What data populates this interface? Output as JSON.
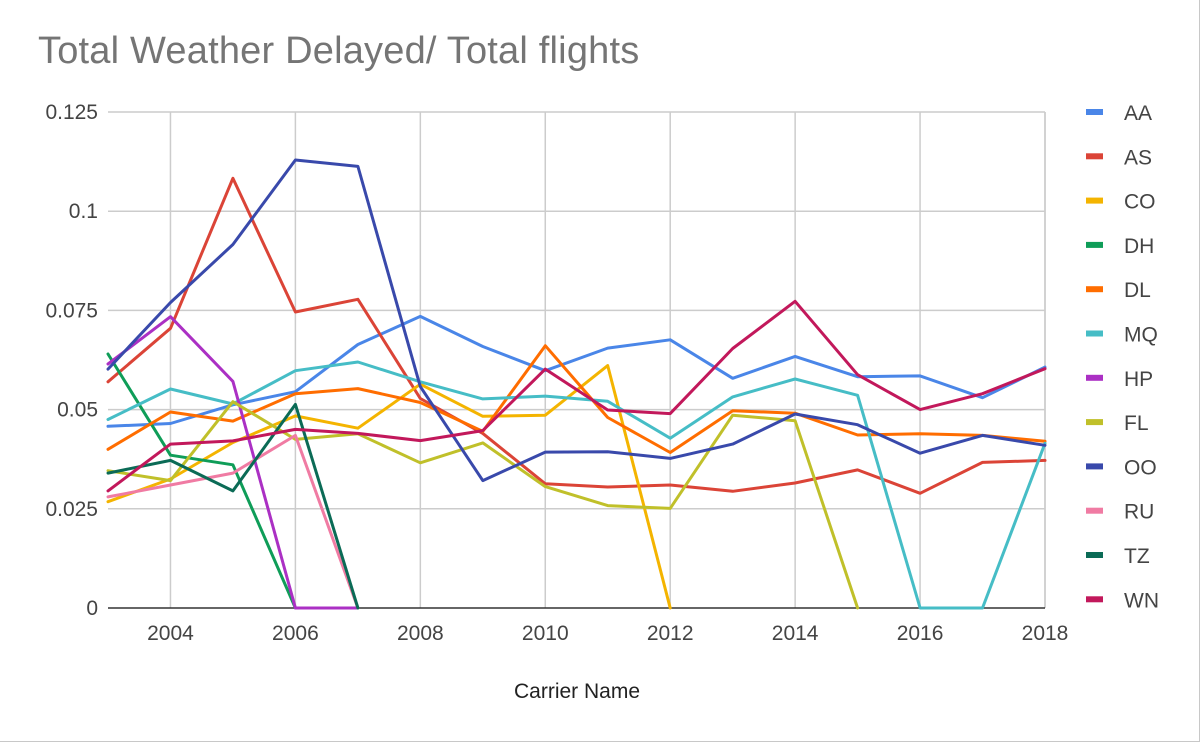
{
  "chart_data": {
    "type": "line",
    "title": "Total Weather Delayed/ Total flights",
    "xlabel": "Carrier Name",
    "ylabel": "",
    "x": [
      2003,
      2004,
      2005,
      2006,
      2007,
      2008,
      2009,
      2010,
      2011,
      2012,
      2013,
      2014,
      2015,
      2016,
      2017,
      2018
    ],
    "xlim": [
      2003,
      2018
    ],
    "x_ticks": [
      "2004",
      "2006",
      "2008",
      "2010",
      "2012",
      "2014",
      "2016",
      "2018"
    ],
    "ylim": [
      0,
      0.125
    ],
    "y_ticks": [
      "0",
      "0.025",
      "0.05",
      "0.075",
      "0.1",
      "0.125"
    ],
    "grid": true,
    "legend_position": "right",
    "series": [
      {
        "name": "AA",
        "color": "#4a86e8",
        "values": [
          0.0458,
          0.0465,
          0.0512,
          0.0545,
          0.0664,
          0.0735,
          0.0659,
          0.0598,
          0.0655,
          0.0676,
          0.0579,
          0.0634,
          0.0583,
          0.0585,
          0.053,
          0.0607
        ]
      },
      {
        "name": "AS",
        "color": "#db4437",
        "values": [
          0.057,
          0.0705,
          0.1083,
          0.0746,
          0.0778,
          0.0528,
          0.044,
          0.0313,
          0.0305,
          0.031,
          0.0294,
          0.0315,
          0.0348,
          0.0289,
          0.0367,
          0.0372
        ]
      },
      {
        "name": "CO",
        "color": "#f4b400",
        "values": [
          0.0268,
          0.0325,
          0.0417,
          0.0484,
          0.0453,
          0.0564,
          0.0483,
          0.0486,
          0.0611,
          0.0,
          null,
          null,
          null,
          null,
          null,
          null
        ]
      },
      {
        "name": "DH",
        "color": "#0f9d58",
        "values": [
          0.064,
          0.0385,
          0.0361,
          0.0,
          null,
          null,
          null,
          null,
          null,
          null,
          null,
          null,
          null,
          null,
          null,
          null
        ]
      },
      {
        "name": "DL",
        "color": "#ff6d00",
        "values": [
          0.04,
          0.0494,
          0.0471,
          0.054,
          0.0553,
          0.0518,
          0.0445,
          0.0661,
          0.048,
          0.0392,
          0.0497,
          0.0491,
          0.0436,
          0.0439,
          0.0435,
          0.042
        ]
      },
      {
        "name": "MQ",
        "color": "#46bdc6",
        "values": [
          0.0475,
          0.0552,
          0.0514,
          0.0598,
          0.062,
          0.057,
          0.0527,
          0.0534,
          0.0521,
          0.0428,
          0.0532,
          0.0577,
          0.0536,
          0.0,
          0.0,
          0.0415
        ]
      },
      {
        "name": "HP",
        "color": "#ab30c4",
        "values": [
          0.0615,
          0.0734,
          0.0571,
          0.0,
          0.0,
          null,
          null,
          null,
          null,
          null,
          null,
          null,
          null,
          null,
          null,
          null
        ]
      },
      {
        "name": "FL",
        "color": "#c0c02a",
        "values": [
          0.0346,
          0.0321,
          0.052,
          0.0425,
          0.0439,
          0.0366,
          0.0416,
          0.0306,
          0.0258,
          0.0251,
          0.0486,
          0.0472,
          0.0,
          null,
          null,
          null
        ]
      },
      {
        "name": "OO",
        "color": "#3949ab",
        "values": [
          0.0602,
          0.077,
          0.0916,
          0.1129,
          0.1113,
          0.0558,
          0.0321,
          0.0393,
          0.0394,
          0.0377,
          0.0413,
          0.0489,
          0.0462,
          0.039,
          0.0435,
          0.041
        ]
      },
      {
        "name": "RU",
        "color": "#f07ba3",
        "values": [
          0.028,
          0.031,
          0.034,
          0.0435,
          0.0,
          null,
          null,
          null,
          null,
          null,
          null,
          null,
          null,
          null,
          null,
          null
        ]
      },
      {
        "name": "TZ",
        "color": "#0b6b56",
        "values": [
          0.034,
          0.0372,
          0.0295,
          0.0513,
          0.0,
          null,
          null,
          null,
          null,
          null,
          null,
          null,
          null,
          null,
          null,
          null
        ]
      },
      {
        "name": "WN",
        "color": "#c2185b",
        "values": [
          0.0295,
          0.0413,
          0.0421,
          0.045,
          0.044,
          0.0422,
          0.0447,
          0.0602,
          0.0499,
          0.049,
          0.0654,
          0.0773,
          0.0588,
          0.05,
          0.054,
          0.0603
        ]
      }
    ]
  }
}
